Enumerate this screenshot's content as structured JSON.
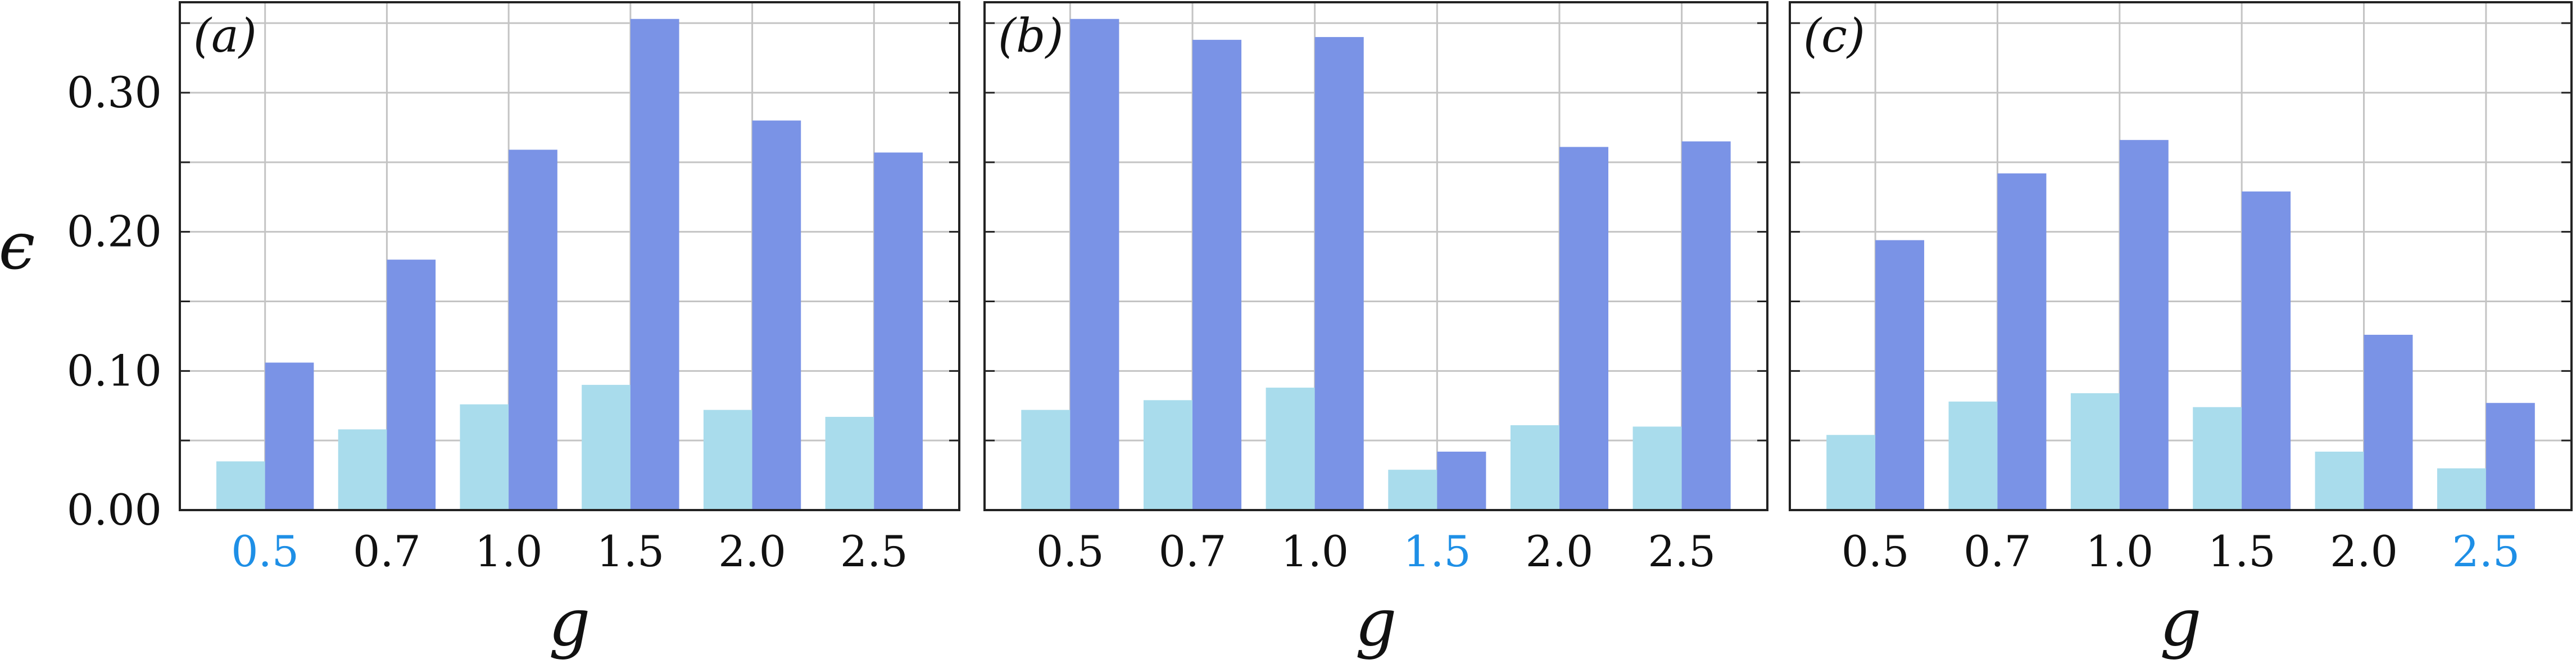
{
  "chart_data": [
    {
      "type": "bar",
      "panel_label": "(a)",
      "categories": [
        "0.5",
        "0.7",
        "1.0",
        "1.5",
        "2.0",
        "2.5"
      ],
      "highlight_category": "0.5",
      "series": [
        {
          "values": [
            0.035,
            0.058,
            0.076,
            0.09,
            0.072,
            0.067
          ]
        },
        {
          "values": [
            0.106,
            0.18,
            0.259,
            0.353,
            0.28,
            0.257
          ]
        }
      ],
      "xlabel": "g",
      "ylabel": "ϵ",
      "ylim": [
        0,
        0.365
      ],
      "yticks": [
        "0.00",
        "0.10",
        "0.20",
        "0.30"
      ],
      "grid": true
    },
    {
      "type": "bar",
      "panel_label": "(b)",
      "categories": [
        "0.5",
        "0.7",
        "1.0",
        "1.5",
        "2.0",
        "2.5"
      ],
      "highlight_category": "1.5",
      "series": [
        {
          "values": [
            0.072,
            0.079,
            0.088,
            0.029,
            0.061,
            0.06
          ]
        },
        {
          "values": [
            0.353,
            0.338,
            0.34,
            0.042,
            0.261,
            0.265
          ]
        }
      ],
      "xlabel": "g",
      "ylim": [
        0,
        0.365
      ],
      "grid": true
    },
    {
      "type": "bar",
      "panel_label": "(c)",
      "categories": [
        "0.5",
        "0.7",
        "1.0",
        "1.5",
        "2.0",
        "2.5"
      ],
      "highlight_category": "2.5",
      "series": [
        {
          "values": [
            0.054,
            0.078,
            0.084,
            0.074,
            0.042,
            0.03
          ]
        },
        {
          "values": [
            0.194,
            0.242,
            0.266,
            0.229,
            0.126,
            0.077
          ]
        }
      ],
      "xlabel": "g",
      "ylim": [
        0,
        0.365
      ],
      "grid": true
    }
  ],
  "colors": {
    "series_light": "#a9dcec",
    "series_dark": "#7a93e6",
    "highlight_tick": "#1e8fe6",
    "grid": "#c4c4c4",
    "axis": "#222222",
    "text": "#111111"
  }
}
